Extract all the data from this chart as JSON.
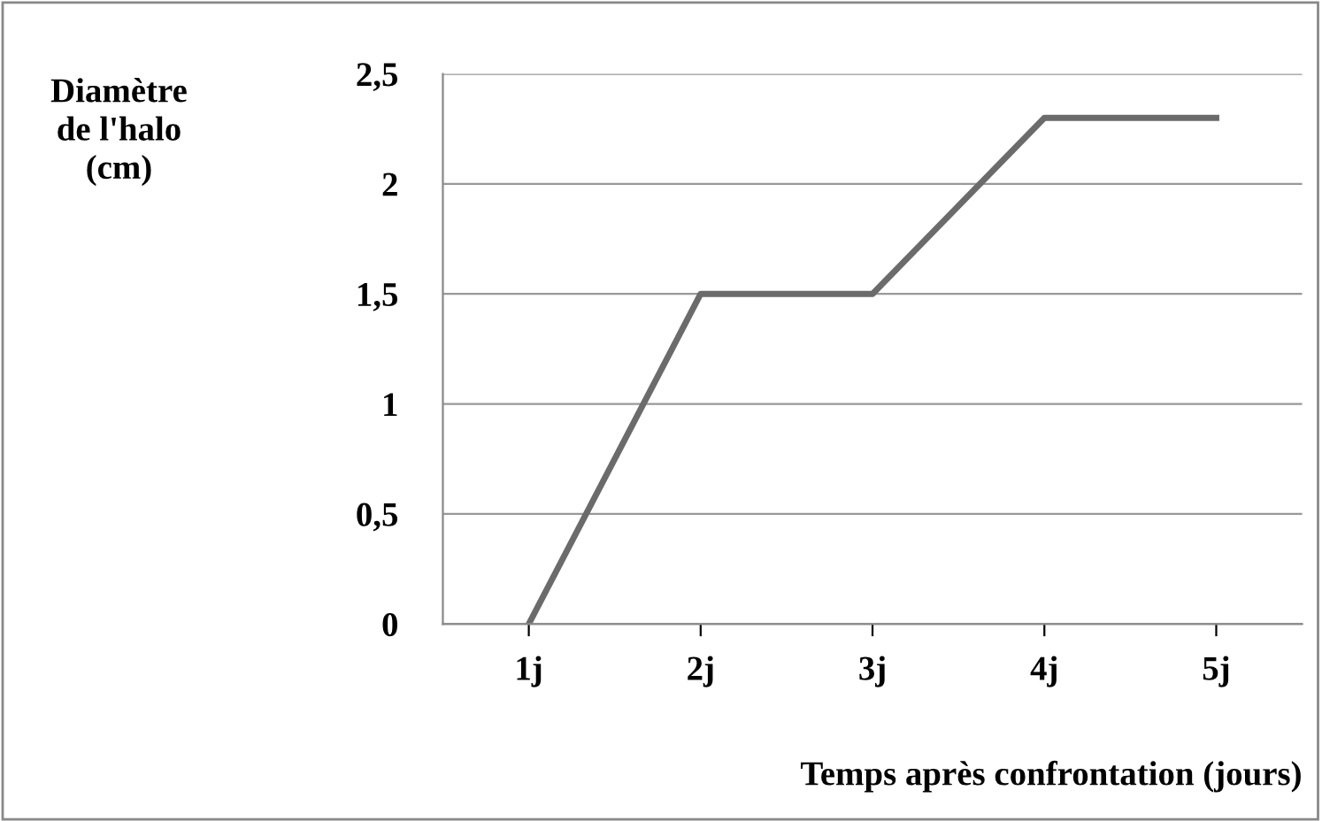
{
  "chart_data": {
    "type": "line",
    "ylabel": "Diamètre\nde l'halo\n(cm)",
    "xlabel": "Temps après confrontation (jours)",
    "categories": [
      "1j",
      "2j",
      "3j",
      "4j",
      "5j"
    ],
    "series": [
      {
        "color": "#6b6b6b",
        "values": [
          0,
          1.5,
          1.5,
          2.3,
          2.3
        ]
      }
    ],
    "ylim": [
      0,
      2.5
    ],
    "yticks": [
      0,
      {
        "value": 0.5,
        "label": "0,5"
      },
      1,
      {
        "value": 1.5,
        "label": "1,5"
      },
      2,
      {
        "value": 2.5,
        "label": "2,5"
      }
    ],
    "grid": "y",
    "marker": "none",
    "line_style": "solid",
    "legend": false
  }
}
